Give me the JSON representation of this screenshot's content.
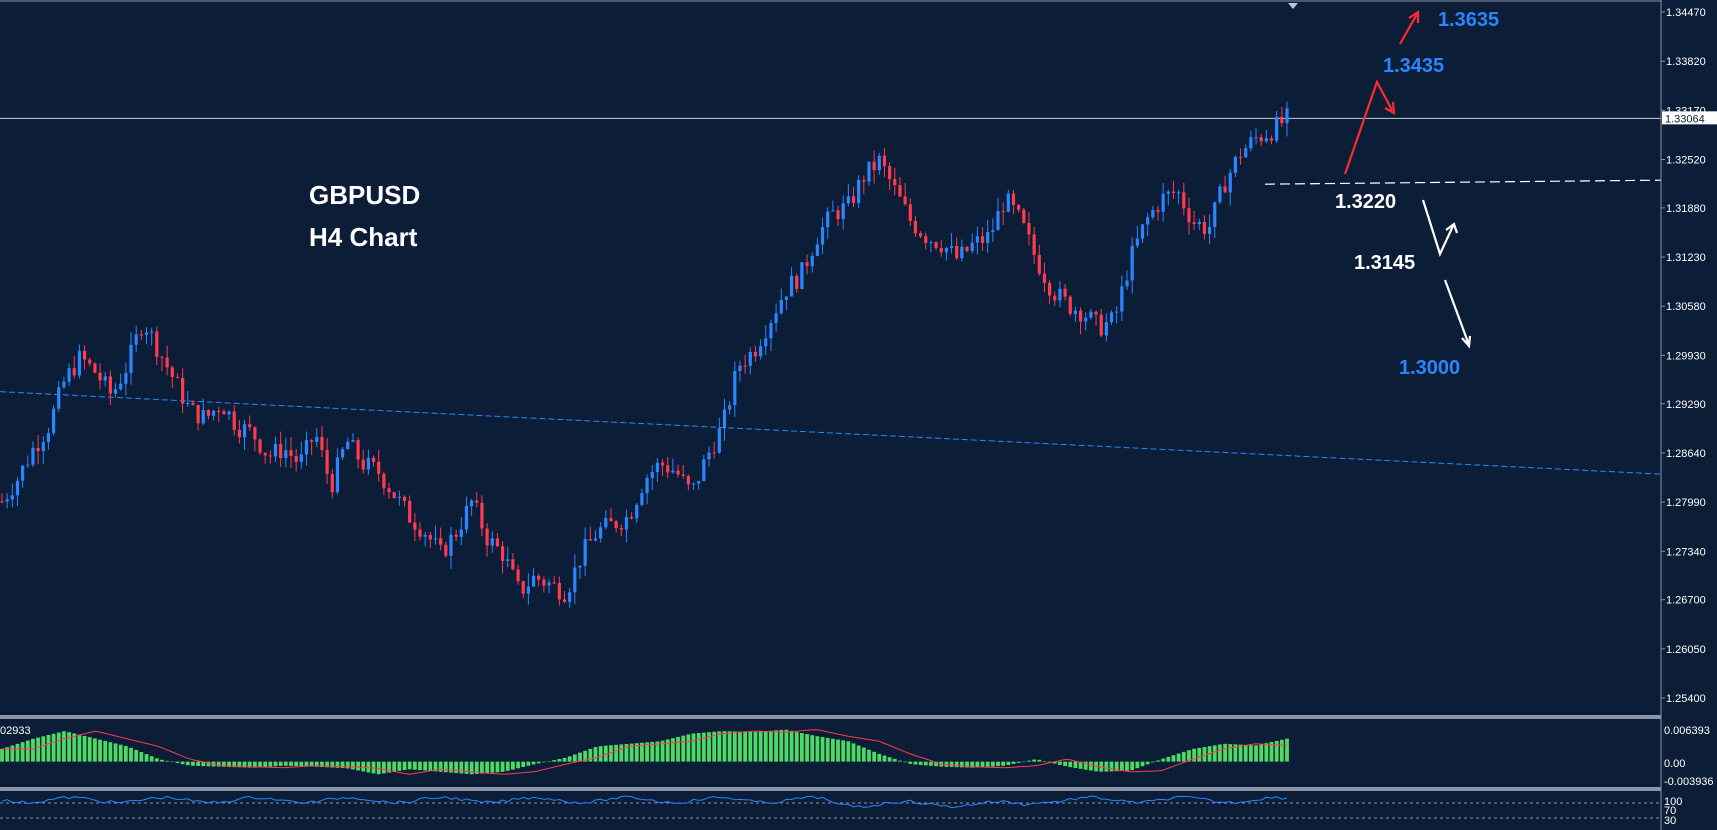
{
  "chart_data": {
    "type": "candlestick",
    "title": "GBPUSD",
    "subtitle": "H4 Chart",
    "symbol": "GBPUSD",
    "timeframe": "H4",
    "colors": {
      "background": "#0b1d37",
      "bull": "#2a86ff",
      "bear": "#ff3b4e",
      "grid": "none",
      "text": "#ffffff",
      "annotation_blue": "#2a86ff",
      "annotation_red": "#ff2a2a",
      "annotation_white": "#ffffff",
      "histogram": "#4cd964",
      "signal": "#ff3b4e",
      "rsi": "#2a86ff"
    },
    "y_axis": {
      "ticks": [
        "1.34470",
        "1.33820",
        "1.33170",
        "1.32520",
        "1.31880",
        "1.31230",
        "1.30580",
        "1.29930",
        "1.29290",
        "1.28640",
        "1.27990",
        "1.27340",
        "1.26700",
        "1.26050",
        "1.25400"
      ],
      "range": [
        1.2475,
        1.35
      ],
      "current_price": "1.33064",
      "current_value": 1.33064
    },
    "moving_average": {
      "start": 1.2945,
      "end": 1.2836
    },
    "support_level": 1.3222,
    "price_path": [
      1.28,
      1.283,
      1.287,
      1.29,
      1.296,
      1.299,
      1.297,
      1.294,
      1.298,
      1.304,
      1.3,
      1.296,
      1.292,
      1.291,
      1.293,
      1.29,
      1.289,
      1.286,
      1.287,
      1.285,
      1.289,
      1.282,
      1.288,
      1.285,
      1.284,
      1.281,
      1.278,
      1.276,
      1.273,
      1.276,
      1.28,
      1.275,
      1.273,
      1.268,
      1.27,
      1.269,
      1.268,
      1.273,
      1.276,
      1.277,
      1.278,
      1.283,
      1.285,
      1.284,
      1.281,
      1.286,
      1.29,
      1.298,
      1.3,
      1.304,
      1.308,
      1.31,
      1.315,
      1.318,
      1.319,
      1.323,
      1.325,
      1.321,
      1.317,
      1.315,
      1.314,
      1.312,
      1.314,
      1.315,
      1.32,
      1.317,
      1.312,
      1.308,
      1.306,
      1.305,
      1.303,
      1.304,
      1.312,
      1.317,
      1.32,
      1.321,
      1.317,
      1.316,
      1.322,
      1.326,
      1.328,
      1.329,
      1.3306
    ],
    "annotations": [
      {
        "label": "1.3635",
        "color": "blue",
        "value": 1.3635
      },
      {
        "label": "1.3435",
        "color": "blue",
        "value": 1.3435
      },
      {
        "label": "1.3220",
        "color": "white",
        "value": 1.322
      },
      {
        "label": "1.3145",
        "color": "white",
        "value": 1.3145
      },
      {
        "label": "1.3000",
        "color": "blue",
        "value": 1.3
      }
    ],
    "macd": {
      "labels": {
        "top": "0.006393",
        "zero": "0.00",
        "bottom": "-0.003936",
        "current": "02933"
      },
      "range": [
        -0.004,
        0.0068
      ],
      "hist_path": [
        0.0025,
        0.0045,
        0.006,
        0.0045,
        0.003,
        0.0005,
        -0.0008,
        -0.001,
        -0.0012,
        -0.0008,
        -0.001,
        -0.0013,
        -0.0025,
        -0.0015,
        -0.002,
        -0.0025,
        -0.002,
        -0.0005,
        0.0008,
        0.003,
        0.0035,
        0.004,
        0.0055,
        0.006,
        0.0058,
        0.0063,
        0.005,
        0.004,
        0.0015,
        -0.0005,
        -0.001,
        -0.0012,
        -0.0008,
        0.0005,
        -0.001,
        -0.002,
        -0.0018,
        0.0005,
        0.0025,
        0.0035,
        0.0032,
        0.0045
      ]
    },
    "rsi": {
      "labels": {
        "top": "100",
        "upper": "70",
        "lower": "30"
      },
      "level": 0.82
    }
  }
}
